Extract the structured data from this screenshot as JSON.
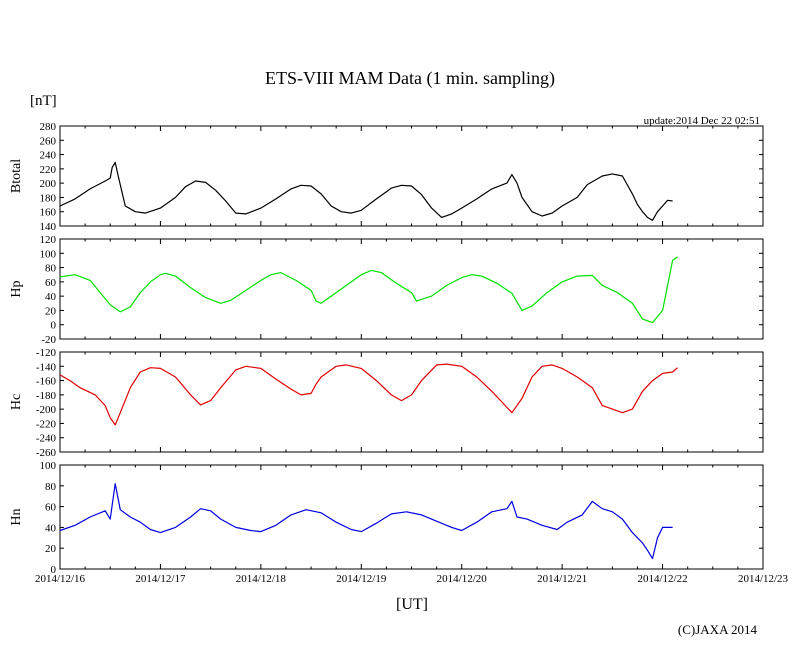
{
  "chart_data": {
    "type": "line",
    "title": "ETS-VIII MAM Data (1 min. sampling)",
    "unit_label": "[nT]",
    "update_text": "update:2014 Dec 22 02:51",
    "xlabel": "[UT]",
    "copyright": "(C)JAXA 2014",
    "x_ticks": [
      "2014/12/16",
      "2014/12/17",
      "2014/12/18",
      "2014/12/19",
      "2014/12/20",
      "2014/12/21",
      "2014/12/22",
      "2014/12/23"
    ],
    "x_range_days": [
      0,
      7
    ],
    "panels": [
      {
        "name": "Btotal",
        "color": "#000000",
        "ylim": [
          140,
          280
        ],
        "yticks": [
          140,
          160,
          180,
          200,
          220,
          240,
          260,
          280
        ],
        "points": [
          [
            0,
            168
          ],
          [
            0.15,
            178
          ],
          [
            0.3,
            192
          ],
          [
            0.45,
            203
          ],
          [
            0.5,
            207
          ],
          [
            0.52,
            222
          ],
          [
            0.55,
            229
          ],
          [
            0.58,
            210
          ],
          [
            0.65,
            168
          ],
          [
            0.75,
            160
          ],
          [
            0.85,
            158
          ],
          [
            1.0,
            165
          ],
          [
            1.15,
            180
          ],
          [
            1.25,
            195
          ],
          [
            1.35,
            203
          ],
          [
            1.45,
            201
          ],
          [
            1.55,
            190
          ],
          [
            1.65,
            175
          ],
          [
            1.75,
            158
          ],
          [
            1.85,
            157
          ],
          [
            2.0,
            165
          ],
          [
            2.15,
            178
          ],
          [
            2.3,
            192
          ],
          [
            2.4,
            197
          ],
          [
            2.5,
            196
          ],
          [
            2.6,
            185
          ],
          [
            2.7,
            168
          ],
          [
            2.8,
            160
          ],
          [
            2.9,
            158
          ],
          [
            3.0,
            162
          ],
          [
            3.15,
            178
          ],
          [
            3.3,
            193
          ],
          [
            3.4,
            197
          ],
          [
            3.5,
            196
          ],
          [
            3.6,
            184
          ],
          [
            3.7,
            165
          ],
          [
            3.8,
            152
          ],
          [
            3.9,
            157
          ],
          [
            4.0,
            165
          ],
          [
            4.15,
            178
          ],
          [
            4.3,
            192
          ],
          [
            4.45,
            200
          ],
          [
            4.5,
            212
          ],
          [
            4.55,
            200
          ],
          [
            4.6,
            180
          ],
          [
            4.7,
            160
          ],
          [
            4.8,
            154
          ],
          [
            4.9,
            158
          ],
          [
            5.0,
            168
          ],
          [
            5.15,
            180
          ],
          [
            5.25,
            198
          ],
          [
            5.4,
            210
          ],
          [
            5.5,
            213
          ],
          [
            5.6,
            210
          ],
          [
            5.7,
            185
          ],
          [
            5.75,
            170
          ],
          [
            5.8,
            160
          ],
          [
            5.85,
            152
          ],
          [
            5.9,
            148
          ],
          [
            5.95,
            160
          ],
          [
            6.0,
            168
          ],
          [
            6.05,
            176
          ],
          [
            6.1,
            175
          ]
        ]
      },
      {
        "name": "Hp",
        "color": "#00e000",
        "ylim": [
          -20,
          120
        ],
        "yticks": [
          -20,
          0,
          20,
          40,
          60,
          80,
          100,
          120
        ],
        "points": [
          [
            0,
            67
          ],
          [
            0.15,
            70
          ],
          [
            0.3,
            62
          ],
          [
            0.4,
            45
          ],
          [
            0.5,
            28
          ],
          [
            0.6,
            18
          ],
          [
            0.7,
            25
          ],
          [
            0.8,
            45
          ],
          [
            0.9,
            60
          ],
          [
            1.0,
            70
          ],
          [
            1.05,
            72
          ],
          [
            1.15,
            68
          ],
          [
            1.3,
            52
          ],
          [
            1.45,
            38
          ],
          [
            1.6,
            30
          ],
          [
            1.7,
            34
          ],
          [
            1.85,
            48
          ],
          [
            2.0,
            62
          ],
          [
            2.1,
            70
          ],
          [
            2.2,
            73
          ],
          [
            2.35,
            62
          ],
          [
            2.5,
            48
          ],
          [
            2.55,
            33
          ],
          [
            2.6,
            30
          ],
          [
            2.75,
            45
          ],
          [
            2.9,
            60
          ],
          [
            3.0,
            70
          ],
          [
            3.1,
            76
          ],
          [
            3.2,
            73
          ],
          [
            3.35,
            58
          ],
          [
            3.5,
            45
          ],
          [
            3.55,
            33
          ],
          [
            3.7,
            40
          ],
          [
            3.85,
            55
          ],
          [
            4.0,
            66
          ],
          [
            4.1,
            70
          ],
          [
            4.2,
            68
          ],
          [
            4.35,
            58
          ],
          [
            4.5,
            44
          ],
          [
            4.6,
            20
          ],
          [
            4.7,
            26
          ],
          [
            4.85,
            45
          ],
          [
            5.0,
            60
          ],
          [
            5.15,
            68
          ],
          [
            5.3,
            69
          ],
          [
            5.4,
            55
          ],
          [
            5.55,
            45
          ],
          [
            5.7,
            30
          ],
          [
            5.8,
            8
          ],
          [
            5.9,
            3
          ],
          [
            6.0,
            20
          ],
          [
            6.05,
            55
          ],
          [
            6.1,
            90
          ],
          [
            6.15,
            95
          ]
        ]
      },
      {
        "name": "Hc",
        "color": "#e00000",
        "ylim": [
          -260,
          -120
        ],
        "yticks": [
          -260,
          -240,
          -220,
          -200,
          -180,
          -160,
          -140,
          -120
        ],
        "points": [
          [
            0,
            -152
          ],
          [
            0.1,
            -160
          ],
          [
            0.2,
            -170
          ],
          [
            0.35,
            -180
          ],
          [
            0.45,
            -195
          ],
          [
            0.5,
            -212
          ],
          [
            0.55,
            -222
          ],
          [
            0.6,
            -205
          ],
          [
            0.7,
            -170
          ],
          [
            0.8,
            -148
          ],
          [
            0.9,
            -142
          ],
          [
            1.0,
            -143
          ],
          [
            1.15,
            -155
          ],
          [
            1.3,
            -180
          ],
          [
            1.4,
            -194
          ],
          [
            1.5,
            -188
          ],
          [
            1.6,
            -170
          ],
          [
            1.75,
            -145
          ],
          [
            1.85,
            -140
          ],
          [
            2.0,
            -143
          ],
          [
            2.15,
            -158
          ],
          [
            2.3,
            -172
          ],
          [
            2.4,
            -180
          ],
          [
            2.5,
            -178
          ],
          [
            2.55,
            -165
          ],
          [
            2.6,
            -155
          ],
          [
            2.75,
            -140
          ],
          [
            2.85,
            -138
          ],
          [
            3.0,
            -143
          ],
          [
            3.15,
            -160
          ],
          [
            3.3,
            -180
          ],
          [
            3.4,
            -188
          ],
          [
            3.5,
            -180
          ],
          [
            3.6,
            -160
          ],
          [
            3.75,
            -138
          ],
          [
            3.85,
            -137
          ],
          [
            4.0,
            -140
          ],
          [
            4.15,
            -155
          ],
          [
            4.3,
            -175
          ],
          [
            4.4,
            -190
          ],
          [
            4.5,
            -205
          ],
          [
            4.6,
            -185
          ],
          [
            4.7,
            -155
          ],
          [
            4.8,
            -140
          ],
          [
            4.9,
            -138
          ],
          [
            5.0,
            -143
          ],
          [
            5.15,
            -155
          ],
          [
            5.3,
            -170
          ],
          [
            5.4,
            -195
          ],
          [
            5.5,
            -200
          ],
          [
            5.6,
            -205
          ],
          [
            5.7,
            -200
          ],
          [
            5.8,
            -175
          ],
          [
            5.9,
            -160
          ],
          [
            6.0,
            -150
          ],
          [
            6.1,
            -148
          ],
          [
            6.15,
            -142
          ]
        ]
      },
      {
        "name": "Hn",
        "color": "#0000e0",
        "ylim": [
          0,
          100
        ],
        "yticks": [
          0,
          20,
          40,
          60,
          80,
          100
        ],
        "points": [
          [
            0,
            37
          ],
          [
            0.15,
            42
          ],
          [
            0.3,
            50
          ],
          [
            0.45,
            56
          ],
          [
            0.5,
            48
          ],
          [
            0.55,
            82
          ],
          [
            0.6,
            57
          ],
          [
            0.7,
            50
          ],
          [
            0.8,
            45
          ],
          [
            0.9,
            38
          ],
          [
            1.0,
            35
          ],
          [
            1.15,
            40
          ],
          [
            1.3,
            50
          ],
          [
            1.4,
            58
          ],
          [
            1.5,
            56
          ],
          [
            1.6,
            48
          ],
          [
            1.75,
            40
          ],
          [
            1.9,
            37
          ],
          [
            2.0,
            36
          ],
          [
            2.15,
            42
          ],
          [
            2.3,
            52
          ],
          [
            2.45,
            57
          ],
          [
            2.6,
            54
          ],
          [
            2.75,
            45
          ],
          [
            2.9,
            38
          ],
          [
            3.0,
            36
          ],
          [
            3.15,
            44
          ],
          [
            3.3,
            53
          ],
          [
            3.45,
            55
          ],
          [
            3.6,
            52
          ],
          [
            3.75,
            46
          ],
          [
            3.9,
            40
          ],
          [
            4.0,
            37
          ],
          [
            4.15,
            45
          ],
          [
            4.3,
            55
          ],
          [
            4.45,
            58
          ],
          [
            4.5,
            65
          ],
          [
            4.55,
            50
          ],
          [
            4.65,
            48
          ],
          [
            4.8,
            42
          ],
          [
            4.95,
            38
          ],
          [
            5.05,
            45
          ],
          [
            5.2,
            52
          ],
          [
            5.3,
            65
          ],
          [
            5.4,
            58
          ],
          [
            5.5,
            55
          ],
          [
            5.6,
            48
          ],
          [
            5.7,
            35
          ],
          [
            5.8,
            25
          ],
          [
            5.85,
            18
          ],
          [
            5.9,
            10
          ],
          [
            5.95,
            30
          ],
          [
            6.0,
            40
          ],
          [
            6.1,
            40
          ]
        ]
      }
    ]
  }
}
